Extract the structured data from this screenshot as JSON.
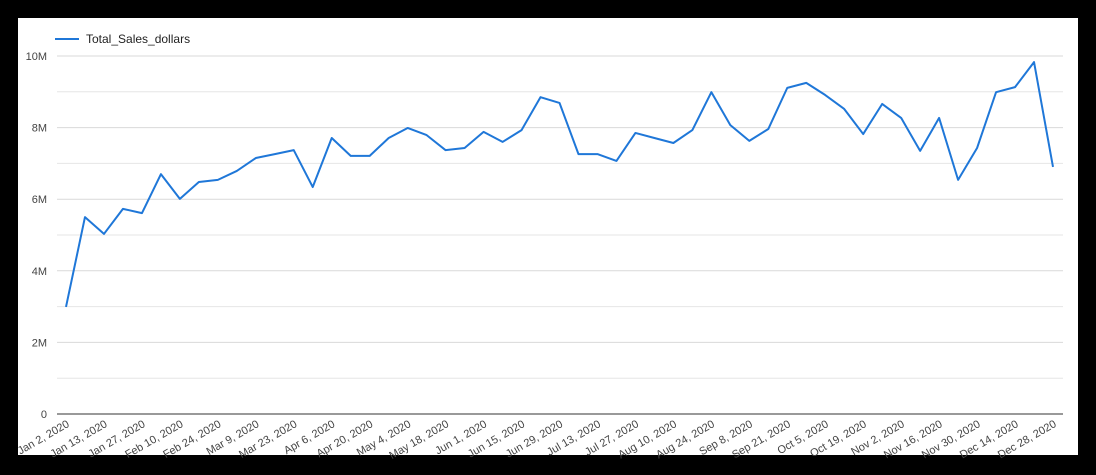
{
  "chart_data": {
    "type": "line",
    "legend_position": "top-left",
    "categories": [
      "Jan 2, 2020",
      null,
      "Jan 13, 2020",
      null,
      "Jan 27, 2020",
      null,
      "Feb 10, 2020",
      null,
      "Feb 24, 2020",
      null,
      "Mar 9, 2020",
      null,
      "Mar 23, 2020",
      null,
      "Apr 6, 2020",
      null,
      "Apr 20, 2020",
      null,
      "May 4, 2020",
      null,
      "May 18, 2020",
      null,
      "Jun 1, 2020",
      null,
      "Jun 15, 2020",
      null,
      "Jun 29, 2020",
      null,
      "Jul 13, 2020",
      null,
      "Jul 27, 2020",
      null,
      "Aug 10, 2020",
      null,
      "Aug 24, 2020",
      null,
      "Sep 8, 2020",
      null,
      "Sep 21, 2020",
      null,
      "Oct 5, 2020",
      null,
      "Oct 19, 2020",
      null,
      "Nov 2, 2020",
      null,
      "Nov 16, 2020",
      null,
      "Nov 30, 2020",
      null,
      "Dec 14, 2020",
      null,
      "Dec 28, 2020"
    ],
    "series": [
      {
        "name": "Total_Sales_dollars",
        "color": "#1f77d8",
        "values": [
          2990000,
          5500000,
          5030000,
          5730000,
          5610000,
          6700000,
          6010000,
          6480000,
          6540000,
          6790000,
          7150000,
          7260000,
          7370000,
          6340000,
          7710000,
          7210000,
          7210000,
          7710000,
          7990000,
          7790000,
          7370000,
          7430000,
          7880000,
          7600000,
          7930000,
          8850000,
          8690000,
          7260000,
          7260000,
          7070000,
          7850000,
          7710000,
          7570000,
          7930000,
          8990000,
          8070000,
          7630000,
          7960000,
          9110000,
          9250000,
          8910000,
          8520000,
          7820000,
          8660000,
          8270000,
          7350000,
          8270000,
          6540000,
          7430000,
          8990000,
          9130000,
          9830000,
          6900000
        ]
      }
    ],
    "ylim": [
      0,
      10000000
    ],
    "yticks": [
      0,
      {
        "value": 2000000,
        "label": "2M"
      },
      {
        "value": 4000000,
        "label": "4M"
      },
      {
        "value": 6000000,
        "label": "6M"
      },
      {
        "value": 8000000,
        "label": "8M"
      },
      {
        "value": 10000000,
        "label": "10M"
      }
    ],
    "y_minor_ticks": [
      1000000,
      3000000,
      5000000,
      7000000,
      9000000
    ],
    "grid": true
  }
}
